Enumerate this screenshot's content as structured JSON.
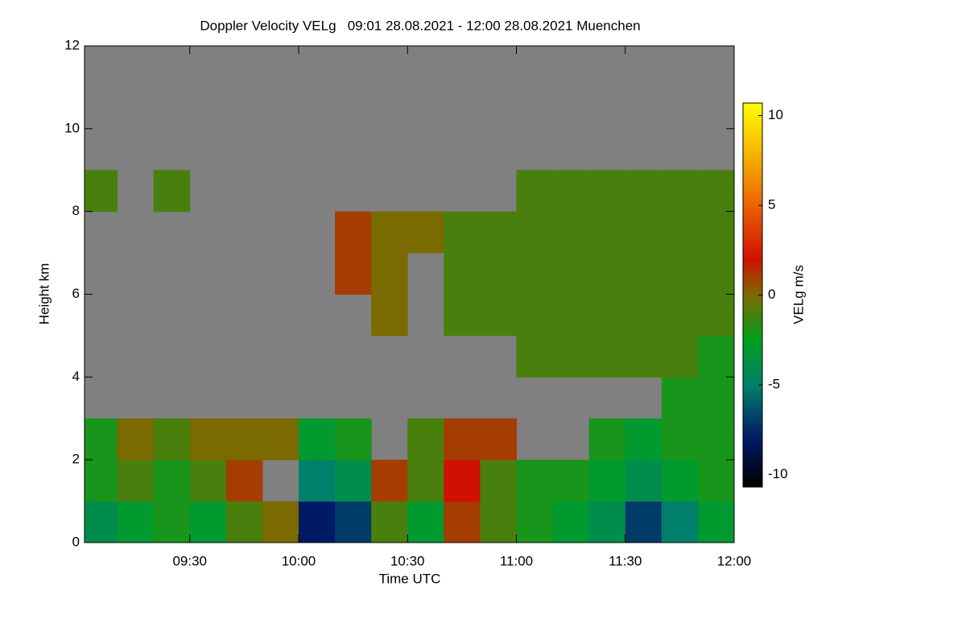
{
  "chart_data": {
    "type": "heatmap",
    "title": "Doppler Velocity VELg   09:01 28.08.2021 - 12:00 28.08.2021 Muenchen",
    "x_label": "Time UTC",
    "y_label": "Height km",
    "colorbar_label": "VELg m/s",
    "background": "#808080",
    "xlim": [
      541,
      720
    ],
    "xticks": [
      {
        "value": 570,
        "label": "09:30"
      },
      {
        "value": 600,
        "label": "10:00"
      },
      {
        "value": 630,
        "label": "10:30"
      },
      {
        "value": 660,
        "label": "11:00"
      },
      {
        "value": 690,
        "label": "11:30"
      },
      {
        "value": 720,
        "label": "12:00"
      }
    ],
    "ylim": [
      0,
      12
    ],
    "yticks": [
      0,
      2,
      4,
      6,
      8,
      10,
      12
    ],
    "clim": [
      -10.7,
      10.7
    ],
    "cticks": [
      -10,
      -5,
      0,
      5,
      10
    ],
    "colormap": [
      [
        -10.7,
        "#000000"
      ],
      [
        -8,
        "#001a66"
      ],
      [
        -5,
        "#00806a"
      ],
      [
        -2.5,
        "#00a020"
      ],
      [
        0,
        "#7a6a00"
      ],
      [
        2,
        "#d01000"
      ],
      [
        6,
        "#f08000"
      ],
      [
        10.7,
        "#ffff00"
      ]
    ],
    "x": [
      545,
      555,
      565,
      575,
      585,
      595,
      605,
      615,
      625,
      635,
      645,
      655,
      665,
      675,
      685,
      695,
      705,
      715
    ],
    "y": [
      0.5,
      1.5,
      2.5,
      3.5,
      4.5,
      5.5,
      6.5,
      7.5,
      8.5,
      9.5,
      10.5,
      11.5
    ],
    "values": [
      [
        -4,
        -3,
        -2,
        -3,
        -1,
        0,
        -8,
        -7,
        -1,
        -3,
        1,
        -1,
        -2,
        -3,
        -4,
        -7,
        -5,
        -3
      ],
      [
        -2,
        -1,
        -2,
        -1,
        1,
        null,
        -5,
        -4,
        1,
        -1,
        2,
        -1,
        -2,
        -2,
        -3,
        -4,
        -3,
        -2
      ],
      [
        -2,
        0,
        -1,
        0,
        0,
        0,
        -3,
        -2,
        null,
        -1,
        1,
        1,
        null,
        null,
        -2,
        -3,
        -2,
        -2
      ],
      [
        null,
        null,
        null,
        null,
        null,
        null,
        null,
        null,
        null,
        null,
        null,
        null,
        null,
        null,
        null,
        null,
        -2,
        -2
      ],
      [
        null,
        null,
        null,
        null,
        null,
        null,
        null,
        null,
        null,
        null,
        null,
        null,
        -1,
        -1,
        -1,
        -1,
        -1,
        -2
      ],
      [
        null,
        null,
        null,
        null,
        null,
        null,
        null,
        null,
        0,
        null,
        -1,
        -1,
        -1,
        -1,
        -1,
        -1,
        -1,
        -1
      ],
      [
        null,
        null,
        null,
        null,
        null,
        null,
        null,
        1,
        0,
        null,
        -1,
        -1,
        -1,
        -1,
        -1,
        -1,
        -1,
        -1
      ],
      [
        null,
        null,
        null,
        null,
        null,
        null,
        null,
        1,
        0,
        0,
        -1,
        -1,
        -1,
        -1,
        -1,
        -1,
        -1,
        -1
      ],
      [
        -1,
        null,
        -1,
        null,
        null,
        null,
        null,
        null,
        null,
        null,
        null,
        null,
        -1,
        -1,
        -1,
        -1,
        -1,
        -1
      ],
      [
        null,
        null,
        null,
        null,
        null,
        null,
        null,
        null,
        null,
        null,
        null,
        null,
        null,
        null,
        null,
        null,
        null,
        null
      ],
      [
        null,
        null,
        null,
        null,
        null,
        null,
        null,
        null,
        null,
        null,
        null,
        null,
        null,
        null,
        null,
        null,
        null,
        null
      ],
      [
        null,
        null,
        null,
        null,
        null,
        null,
        null,
        null,
        null,
        null,
        null,
        null,
        null,
        null,
        null,
        null,
        null,
        null
      ]
    ]
  }
}
